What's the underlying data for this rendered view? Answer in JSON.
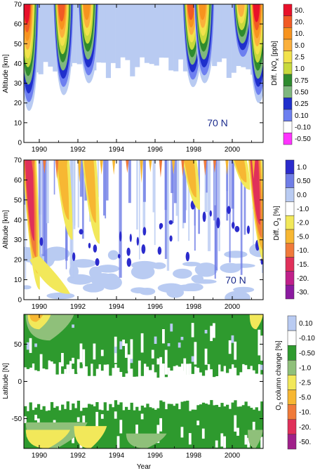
{
  "chart_data": [
    {
      "type": "heatmap",
      "panel": "NOx difference",
      "ylabel": "Altitude [km]",
      "xlabel": "",
      "ylim": [
        0,
        70
      ],
      "xlim": [
        1989.2,
        2001.6
      ],
      "x_ticks": [
        "1990",
        "1992",
        "1994",
        "1996",
        "1998",
        "2000"
      ],
      "y_ticks": [
        "0",
        "10",
        "20",
        "30",
        "40",
        "50",
        "60",
        "70"
      ],
      "annotation": "70 N",
      "colorbar": {
        "title": "Diff. NO",
        "title_sub": "x",
        "title_unit": " [ppb]",
        "levels": [
          "50.",
          "20.",
          "10.",
          "5.0",
          "2.5",
          "1.0",
          "0.75",
          "0.50",
          "0.25",
          "0.10",
          "-0.10",
          "-0.50"
        ],
        "colors": [
          "#e8102a",
          "#f15a24",
          "#f7931e",
          "#fbb03b",
          "#f2e24b",
          "#c8d93c",
          "#2e8b2e",
          "#7fb77e",
          "#1f2fcc",
          "#6d7ff0",
          "#ffffff",
          "#ff33ff"
        ]
      },
      "events": [
        {
          "year": 1989.3,
          "top": 70,
          "bottom": 16,
          "peak": 50
        },
        {
          "year": 1991.1,
          "top": 70,
          "bottom": 24,
          "peak": 20
        },
        {
          "year": 1992.4,
          "top": 70,
          "bottom": 30,
          "peak": 10
        },
        {
          "year": 1997.8,
          "top": 70,
          "bottom": 28,
          "peak": 20
        },
        {
          "year": 1998.4,
          "top": 70,
          "bottom": 30,
          "peak": 10
        },
        {
          "year": 2000.4,
          "top": 70,
          "bottom": 40,
          "peak": 5
        },
        {
          "year": 2001.2,
          "top": 70,
          "bottom": 20,
          "peak": 50
        }
      ]
    },
    {
      "type": "heatmap",
      "panel": "O3 difference",
      "ylabel": "Altitude [km]",
      "xlabel": "",
      "ylim": [
        0,
        70
      ],
      "xlim": [
        1989.2,
        2001.6
      ],
      "x_ticks": [
        "1990",
        "1992",
        "1994",
        "1996",
        "1998",
        "2000"
      ],
      "y_ticks": [
        "0",
        "10",
        "20",
        "30",
        "40",
        "50",
        "60",
        "70"
      ],
      "annotation": "70 N",
      "colorbar": {
        "title": "Diff. O",
        "title_sub": "3",
        "title_unit": " [%]",
        "levels": [
          "1.0",
          "0.50",
          "0.0",
          "-1.0",
          "-2.0",
          "-5.0",
          "-10.",
          "-15.",
          "-20.",
          "-30."
        ],
        "colors": [
          "#2b2bcc",
          "#6f7de6",
          "#b9cbf2",
          "#ffffff",
          "#f2e85a",
          "#f7b733",
          "#f07a3a",
          "#e0305a",
          "#c0208a",
          "#8b1aa0"
        ]
      }
    },
    {
      "type": "heatmap",
      "panel": "O3 column change",
      "ylabel": "Latitude [N]",
      "xlabel": "Year",
      "ylim": [
        -90,
        90
      ],
      "xlim": [
        1989.2,
        2001.6
      ],
      "x_ticks": [
        "1990",
        "1992",
        "1994",
        "1996",
        "1998",
        "2000"
      ],
      "y_ticks": [
        "-50",
        "0",
        "50"
      ],
      "colorbar": {
        "title": "O",
        "title_sub": "3",
        "title_unit": " column change [%]",
        "levels": [
          "0.10",
          "-0.10",
          "-0.50",
          "-1.0",
          "-2.5",
          "-5.0",
          "-10.",
          "-20.",
          "-50."
        ],
        "colors": [
          "#b9cbf2",
          "#ffffff",
          "#2e9a2e",
          "#8fc07a",
          "#f2e85a",
          "#f7b733",
          "#f07a3a",
          "#e0305a",
          "#a0208a"
        ]
      }
    }
  ]
}
